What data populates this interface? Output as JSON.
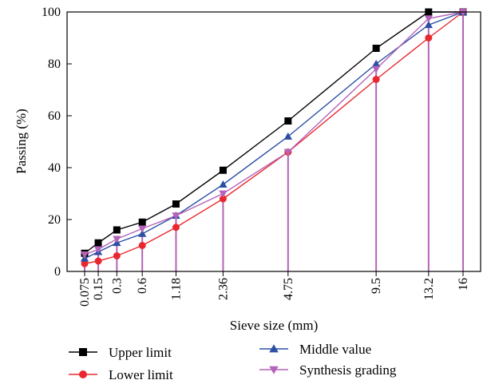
{
  "chart_data": {
    "type": "line",
    "xlabel": "Sieve size (mm)",
    "ylabel": "Passing (%)",
    "categories": [
      "0.075",
      "0.15",
      "0.3",
      "0.6",
      "1.18",
      "2.36",
      "4.75",
      "9.5",
      "13.2",
      "16"
    ],
    "x_scale": "power-0.45",
    "ylim": [
      0,
      100
    ],
    "yticks": [
      "0",
      "20",
      "40",
      "60",
      "80",
      "100"
    ],
    "grid": false,
    "legend": "bottom, two columns",
    "series": [
      {
        "name": "Upper limit",
        "color": "#000000",
        "marker": "square",
        "values": [
          7,
          11,
          16,
          19,
          26,
          39,
          58,
          86,
          100,
          100
        ]
      },
      {
        "name": "Lower limit",
        "color": "#e8282e",
        "marker": "circle",
        "values": [
          3,
          4,
          6,
          10,
          17,
          28,
          46,
          74,
          90,
          100
        ]
      },
      {
        "name": "Middle value",
        "color": "#2b4fa3",
        "marker": "triangle-up",
        "values": [
          5,
          7.5,
          11,
          14.5,
          21.5,
          33.5,
          52,
          80,
          95,
          100
        ]
      },
      {
        "name": "Synthesis grading",
        "color": "#b463b8",
        "marker": "triangle-down",
        "values": [
          6.5,
          8.5,
          12.5,
          16.5,
          21.5,
          30,
          46,
          78,
          97.5,
          100
        ]
      }
    ],
    "drop_lines": {
      "series": "Synthesis grading",
      "color": "#b463b8"
    }
  }
}
